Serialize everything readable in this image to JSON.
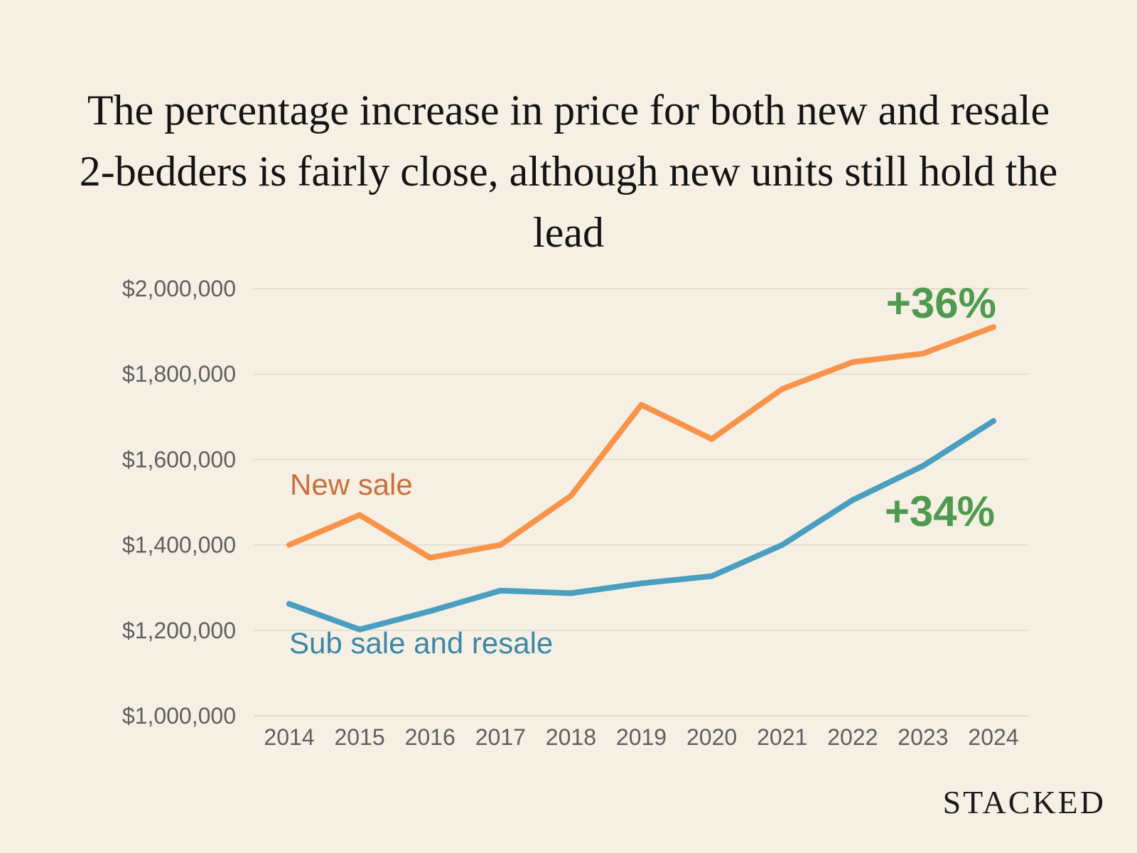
{
  "chart_data": {
    "type": "line",
    "title": "The percentage increase in price for both new and resale 2-bedders is fairly close, although new units still hold the lead",
    "xlabel": "",
    "ylabel": "",
    "categories": [
      "2014",
      "2015",
      "2016",
      "2017",
      "2018",
      "2019",
      "2020",
      "2021",
      "2022",
      "2023",
      "2024"
    ],
    "ylim": [
      1000000,
      2000000
    ],
    "yticks": [
      1000000,
      1200000,
      1400000,
      1600000,
      1800000,
      2000000
    ],
    "ytick_labels": [
      "$1,000,000",
      "$1,200,000",
      "$1,400,000",
      "$1,600,000",
      "$1,800,000",
      "$2,000,000"
    ],
    "grid": true,
    "legend": "inline labels",
    "series": [
      {
        "name": "New sale",
        "color": "#f7944a",
        "label_color": "#c9703a",
        "values": [
          1400000,
          1470000,
          1370000,
          1400000,
          1515000,
          1728000,
          1648000,
          1765000,
          1828000,
          1848000,
          1910000
        ],
        "annotation": "+36%"
      },
      {
        "name": "Sub sale and resale",
        "color": "#4a9ec0",
        "label_color": "#3b88a6",
        "values": [
          1262000,
          1202000,
          1245000,
          1293000,
          1287000,
          1310000,
          1327000,
          1400000,
          1505000,
          1585000,
          1690000
        ],
        "annotation": "+34%"
      }
    ],
    "annotation_color": "#4e9a4f",
    "grid_color": "#e0dbcf"
  },
  "brand": {
    "name": "STACKED"
  }
}
